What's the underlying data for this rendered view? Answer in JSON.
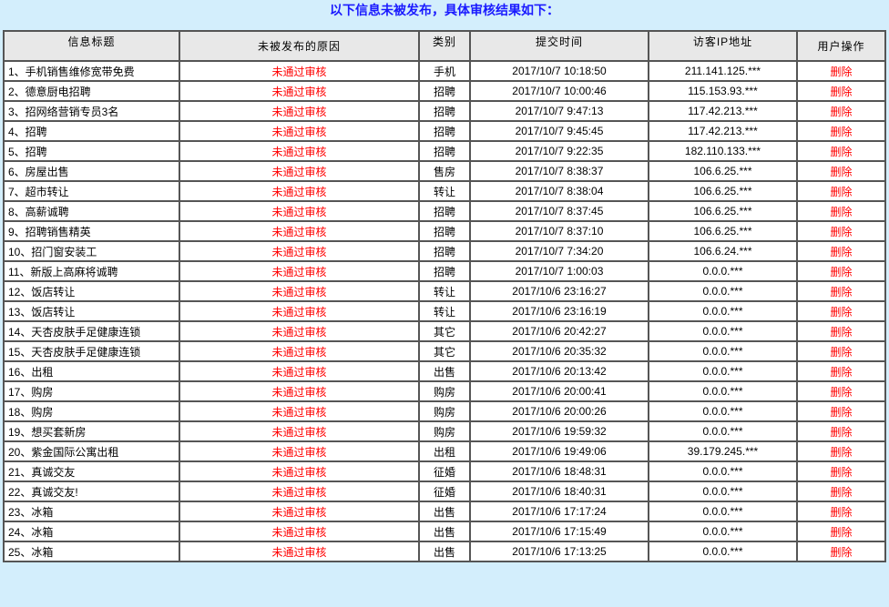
{
  "banner": "以下信息未被发布，具体审核结果如下：",
  "headers": [
    "信息标题",
    "未被发布的原因",
    "类别",
    "提交时间",
    "访客IP地址",
    "用户操作"
  ],
  "colors": {
    "banner_text": "#1a1aff",
    "reason": "#ff0000",
    "background": "#d3eefc"
  },
  "rows": [
    [
      "1、手机销售维修宽带免费",
      "未通过审核",
      "手机",
      "2017/10/7 10:18:50",
      "211.141.125.***",
      "删除"
    ],
    [
      "2、德意厨电招聘",
      "未通过审核",
      "招聘",
      "2017/10/7 10:00:46",
      "115.153.93.***",
      "删除"
    ],
    [
      "3、招网络营销专员3名",
      "未通过审核",
      "招聘",
      "2017/10/7 9:47:13",
      "117.42.213.***",
      "删除"
    ],
    [
      "4、招聘",
      "未通过审核",
      "招聘",
      "2017/10/7 9:45:45",
      "117.42.213.***",
      "删除"
    ],
    [
      "5、招聘",
      "未通过审核",
      "招聘",
      "2017/10/7 9:22:35",
      "182.110.133.***",
      "删除"
    ],
    [
      "6、房屋出售",
      "未通过审核",
      "售房",
      "2017/10/7 8:38:37",
      "106.6.25.***",
      "删除"
    ],
    [
      "7、超市转让",
      "未通过审核",
      "转让",
      "2017/10/7 8:38:04",
      "106.6.25.***",
      "删除"
    ],
    [
      "8、高薪诚聘",
      "未通过审核",
      "招聘",
      "2017/10/7 8:37:45",
      "106.6.25.***",
      "删除"
    ],
    [
      "9、招聘销售精英",
      "未通过审核",
      "招聘",
      "2017/10/7 8:37:10",
      "106.6.25.***",
      "删除"
    ],
    [
      "10、招门窗安装工",
      "未通过审核",
      "招聘",
      "2017/10/7 7:34:20",
      "106.6.24.***",
      "删除"
    ],
    [
      "11、新版上高麻将诚聘",
      "未通过审核",
      "招聘",
      "2017/10/7 1:00:03",
      "0.0.0.***",
      "删除"
    ],
    [
      "12、饭店转让",
      "未通过审核",
      "转让",
      "2017/10/6 23:16:27",
      "0.0.0.***",
      "删除"
    ],
    [
      "13、饭店转让",
      "未通过审核",
      "转让",
      "2017/10/6 23:16:19",
      "0.0.0.***",
      "删除"
    ],
    [
      "14、天杏皮肤手足健康连锁",
      "未通过审核",
      "其它",
      "2017/10/6 20:42:27",
      "0.0.0.***",
      "删除"
    ],
    [
      "15、天杏皮肤手足健康连锁",
      "未通过审核",
      "其它",
      "2017/10/6 20:35:32",
      "0.0.0.***",
      "删除"
    ],
    [
      "16、出租",
      "未通过审核",
      "出售",
      "2017/10/6 20:13:42",
      "0.0.0.***",
      "删除"
    ],
    [
      "17、购房",
      "未通过审核",
      "购房",
      "2017/10/6 20:00:41",
      "0.0.0.***",
      "删除"
    ],
    [
      "18、购房",
      "未通过审核",
      "购房",
      "2017/10/6 20:00:26",
      "0.0.0.***",
      "删除"
    ],
    [
      "19、想买套新房",
      "未通过审核",
      "购房",
      "2017/10/6 19:59:32",
      "0.0.0.***",
      "删除"
    ],
    [
      "20、紫金国际公寓出租",
      "未通过审核",
      "出租",
      "2017/10/6 19:49:06",
      "39.179.245.***",
      "删除"
    ],
    [
      "21、真诚交友",
      "未通过审核",
      "征婚",
      "2017/10/6 18:48:31",
      "0.0.0.***",
      "删除"
    ],
    [
      "22、真诚交友!",
      "未通过审核",
      "征婚",
      "2017/10/6 18:40:31",
      "0.0.0.***",
      "删除"
    ],
    [
      "23、冰箱",
      "未通过审核",
      "出售",
      "2017/10/6 17:17:24",
      "0.0.0.***",
      "删除"
    ],
    [
      "24、冰箱",
      "未通过审核",
      "出售",
      "2017/10/6 17:15:49",
      "0.0.0.***",
      "删除"
    ],
    [
      "25、冰箱",
      "未通过审核",
      "出售",
      "2017/10/6 17:13:25",
      "0.0.0.***",
      "删除"
    ]
  ]
}
